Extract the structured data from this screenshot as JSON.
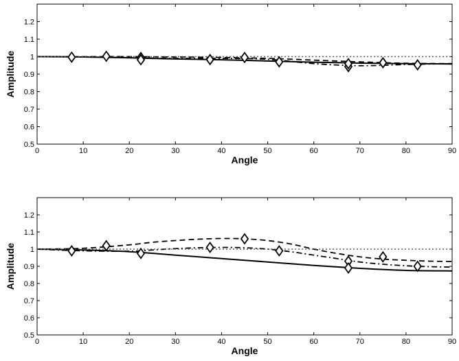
{
  "chart_data": [
    {
      "type": "line",
      "title": "",
      "xlabel": "Angle",
      "ylabel": "Amplitude",
      "xlim": [
        0,
        90
      ],
      "ylim": [
        0.5,
        1.3
      ],
      "xticks": [
        0,
        10,
        20,
        30,
        40,
        50,
        60,
        70,
        80,
        90
      ],
      "yticks": [
        0.5,
        0.6,
        0.7,
        0.8,
        0.9,
        1,
        1.1,
        1.2
      ],
      "ytick_labels": [
        "0.5",
        "0.6",
        "0.7",
        "0.8",
        "0.9",
        "1",
        "1.1",
        "1.2"
      ],
      "grid": false,
      "series": [
        {
          "style": "solid",
          "x": [
            0,
            10,
            20,
            30,
            40,
            50,
            60,
            70,
            80,
            90
          ],
          "y": [
            1.0,
            0.998,
            0.993,
            0.987,
            0.982,
            0.975,
            0.968,
            0.963,
            0.96,
            0.958
          ]
        },
        {
          "style": "dashed",
          "x": [
            0,
            10,
            20,
            30,
            40,
            50,
            60,
            70,
            80,
            90
          ],
          "y": [
            1.0,
            1.0,
            1.0,
            0.998,
            0.995,
            0.99,
            0.98,
            0.97,
            0.962,
            0.96
          ]
        },
        {
          "style": "dashdot",
          "x": [
            0,
            10,
            20,
            30,
            40,
            50,
            60,
            70,
            80,
            90
          ],
          "y": [
            1.0,
            0.998,
            0.994,
            0.99,
            0.99,
            0.985,
            0.96,
            0.948,
            0.955,
            0.96
          ]
        },
        {
          "style": "dotted",
          "x": [
            0,
            90
          ],
          "y": [
            1.0,
            1.0
          ]
        }
      ],
      "markers": {
        "x": [
          7.5,
          15,
          22.5,
          22.5,
          37.5,
          45,
          52.5,
          67.5,
          67.5,
          75,
          82.5
        ],
        "y": [
          0.997,
          1.002,
          0.995,
          0.982,
          0.983,
          0.995,
          0.97,
          0.943,
          0.96,
          0.965,
          0.953
        ]
      }
    },
    {
      "type": "line",
      "title": "",
      "xlabel": "Angle",
      "ylabel": "Amplitude",
      "xlim": [
        0,
        90
      ],
      "ylim": [
        0.5,
        1.3
      ],
      "xticks": [
        0,
        10,
        20,
        30,
        40,
        50,
        60,
        70,
        80,
        90
      ],
      "yticks": [
        0.5,
        0.6,
        0.7,
        0.8,
        0.9,
        1,
        1.1,
        1.2
      ],
      "ytick_labels": [
        "0.5",
        "0.6",
        "0.7",
        "0.8",
        "0.9",
        "1",
        "1.1",
        "1.2"
      ],
      "grid": false,
      "series": [
        {
          "style": "solid",
          "x": [
            0,
            10,
            20,
            30,
            40,
            50,
            60,
            70,
            80,
            90
          ],
          "y": [
            1.0,
            0.995,
            0.985,
            0.965,
            0.945,
            0.925,
            0.905,
            0.888,
            0.876,
            0.873
          ]
        },
        {
          "style": "dashed",
          "x": [
            0,
            10,
            20,
            25,
            30,
            35,
            40,
            45,
            50,
            55,
            60,
            65,
            70,
            75,
            80,
            85,
            90
          ],
          "y": [
            1.0,
            1.005,
            1.025,
            1.04,
            1.05,
            1.058,
            1.062,
            1.06,
            1.05,
            1.03,
            1.0,
            0.975,
            0.955,
            0.942,
            0.935,
            0.93,
            0.928
          ]
        },
        {
          "style": "dashdot",
          "x": [
            0,
            10,
            20,
            25,
            30,
            35,
            40,
            45,
            50,
            55,
            60,
            65,
            70,
            75,
            80,
            85,
            90
          ],
          "y": [
            1.0,
            0.99,
            0.988,
            0.995,
            1.003,
            1.008,
            1.01,
            1.008,
            1.0,
            0.985,
            0.965,
            0.945,
            0.925,
            0.912,
            0.903,
            0.898,
            0.895
          ]
        },
        {
          "style": "dotted",
          "x": [
            0,
            90
          ],
          "y": [
            1.0,
            1.0
          ]
        }
      ],
      "markers": {
        "x": [
          7.5,
          15,
          22.5,
          37.5,
          45,
          52.5,
          67.5,
          67.5,
          75,
          82.5
        ],
        "y": [
          0.99,
          1.02,
          0.975,
          1.01,
          1.06,
          0.99,
          0.93,
          0.89,
          0.955,
          0.9
        ]
      }
    }
  ]
}
